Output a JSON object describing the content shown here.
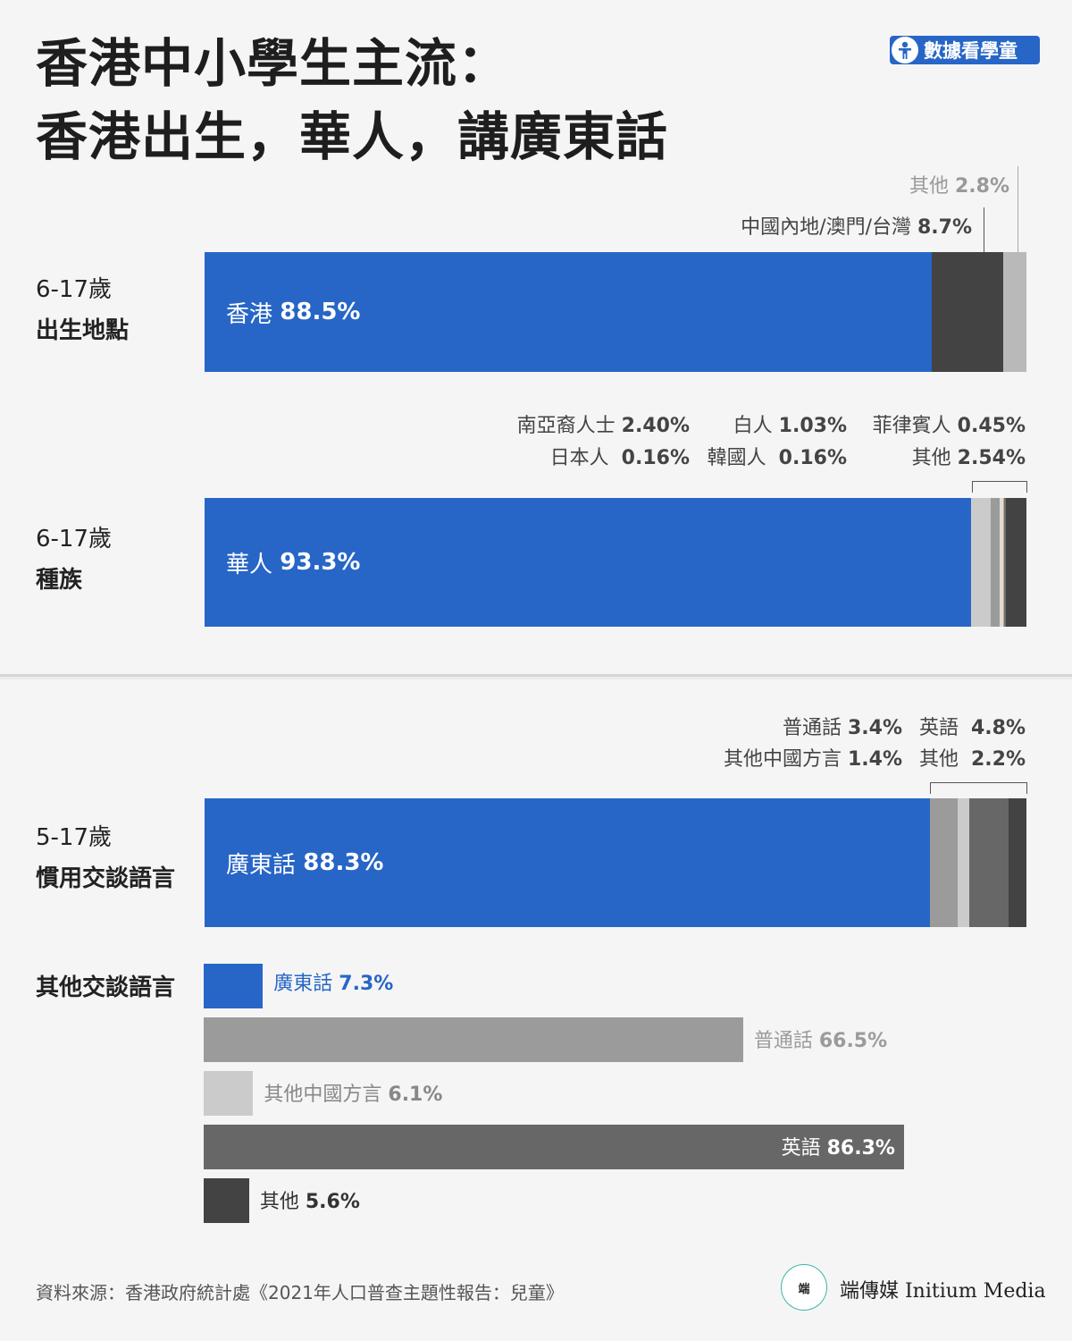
{
  "title": {
    "line1": "香港中小學生主流：",
    "line2": "香港出生，華人，講廣東話"
  },
  "badge": {
    "label": "數據看學童",
    "icon": "person-icon"
  },
  "colors": {
    "blue": "#2766c6",
    "dark": "#434343",
    "mid": "#9b9b9b",
    "light": "#cbcbcb",
    "darkgrey": "#676767",
    "lightgrey": "#b9b9b9"
  },
  "chart_data": [
    {
      "type": "bar",
      "stacked": true,
      "orientation": "horizontal",
      "age": "6-17歲",
      "category": "出生地點",
      "segments": [
        {
          "name": "香港",
          "value": 88.5,
          "display": "88.5%",
          "color": "#2766c6"
        },
        {
          "name": "中國內地/澳門/台灣",
          "value": 8.7,
          "display": "8.7%",
          "color": "#434343"
        },
        {
          "name": "其他",
          "value": 2.8,
          "display": "2.8%",
          "color": "#b9b9b9"
        }
      ]
    },
    {
      "type": "bar",
      "stacked": true,
      "orientation": "horizontal",
      "age": "6-17歲",
      "category": "種族",
      "segments": [
        {
          "name": "華人",
          "value": 93.3,
          "display": "93.3%",
          "color": "#2766c6"
        },
        {
          "name": "南亞裔人士",
          "value": 2.4,
          "display": "2.40%",
          "color": "#cbcbcb"
        },
        {
          "name": "白人",
          "value": 1.03,
          "display": "1.03%",
          "color": "#9b9b9b"
        },
        {
          "name": "菲律賓人",
          "value": 0.45,
          "display": "0.45%",
          "color": "#dcdcdc"
        },
        {
          "name": "日本人",
          "value": 0.16,
          "display": "0.16%",
          "color": "#d6a36a"
        },
        {
          "name": "韓國人",
          "value": 0.16,
          "display": "0.16%",
          "color": "#6f6f6f"
        },
        {
          "name": "其他",
          "value": 2.54,
          "display": "2.54%",
          "color": "#434343"
        }
      ]
    },
    {
      "type": "bar",
      "stacked": true,
      "orientation": "horizontal",
      "age": "5-17歲",
      "category": "慣用交談語言",
      "segments": [
        {
          "name": "廣東話",
          "value": 88.3,
          "display": "88.3%",
          "color": "#2766c6"
        },
        {
          "name": "普通話",
          "value": 3.4,
          "display": "3.4%",
          "color": "#9b9b9b"
        },
        {
          "name": "其他中國方言",
          "value": 1.4,
          "display": "1.4%",
          "color": "#cbcbcb"
        },
        {
          "name": "英語",
          "value": 4.8,
          "display": "4.8%",
          "color": "#676767"
        },
        {
          "name": "其他",
          "value": 2.2,
          "display": "2.2%",
          "color": "#434343"
        }
      ]
    },
    {
      "type": "bar",
      "orientation": "horizontal",
      "category": "其他交談語言",
      "xlim": [
        0,
        100
      ],
      "bars": [
        {
          "name": "廣東話",
          "value": 7.3,
          "display": "7.3%",
          "color": "#2766c6"
        },
        {
          "name": "普通話",
          "value": 66.5,
          "display": "66.5%",
          "color": "#9b9b9b"
        },
        {
          "name": "其他中國方言",
          "value": 6.1,
          "display": "6.1%",
          "color": "#cbcbcb"
        },
        {
          "name": "英語",
          "value": 86.3,
          "display": "86.3%",
          "color": "#676767"
        },
        {
          "name": "其他",
          "value": 5.6,
          "display": "5.6%",
          "color": "#434343"
        }
      ]
    }
  ],
  "footer": {
    "source": "資料來源：香港政府統計處《2021年人口普查主題性報告：兒童》"
  },
  "logo": {
    "mark": "端",
    "name": "端傳媒 Initium Media"
  }
}
